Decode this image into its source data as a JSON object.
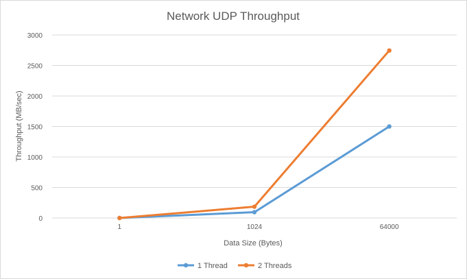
{
  "chart_data": {
    "type": "line",
    "title": "Network UDP Throughput",
    "xlabel": "Data Size (Bytes)",
    "ylabel": "Throughput (MB/sec)",
    "categories": [
      "1",
      "1024",
      "64000"
    ],
    "ylim": [
      0,
      3000
    ],
    "yticks": [
      0,
      500,
      1000,
      1500,
      2000,
      2500,
      3000
    ],
    "grid": true,
    "legend_position": "bottom",
    "series": [
      {
        "name": "1 Thread",
        "values": [
          0,
          95,
          1500
        ],
        "color": "#5b9bd5"
      },
      {
        "name": "2 Threads",
        "values": [
          0,
          185,
          2745
        ],
        "color": "#ed7d31"
      }
    ]
  }
}
